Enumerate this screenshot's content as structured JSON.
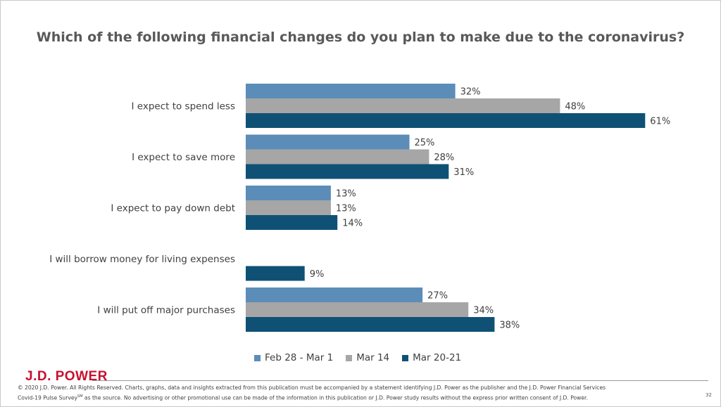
{
  "title": "Which of the following financial changes do you plan to make due to the coronavirus?",
  "chart_data": {
    "type": "bar",
    "orientation": "horizontal",
    "title": "Which of the following financial changes do you plan to make due to the coronavirus?",
    "categories": [
      "I expect to spend less",
      "I expect to save more",
      "I expect to pay down debt",
      "I will borrow money for living expenses",
      "I will put off major purchases"
    ],
    "series": [
      {
        "name": "Feb 28 - Mar 1",
        "color": "#5b8db8",
        "values": [
          32,
          25,
          13,
          null,
          27
        ],
        "labels": [
          "32%",
          "25%",
          "13%",
          "",
          "27%"
        ]
      },
      {
        "name": "Mar 14",
        "color": "#a6a6a6",
        "values": [
          48,
          28,
          13,
          null,
          34
        ],
        "labels": [
          "48%",
          "28%",
          "13%",
          "",
          "34%"
        ]
      },
      {
        "name": "Mar 20-21",
        "color": "#0f5175",
        "values": [
          61,
          31,
          14,
          9,
          38
        ],
        "labels": [
          "61%",
          "31%",
          "14%",
          "9%",
          "38%"
        ]
      }
    ],
    "unit": "%",
    "legend_position": "bottom",
    "grid": false
  },
  "legend": [
    {
      "label": "Feb 28 - Mar 1",
      "color": "#5b8db8"
    },
    {
      "label": "Mar 14",
      "color": "#a6a6a6"
    },
    {
      "label": "Mar 20-21",
      "color": "#0f5175"
    }
  ],
  "brand": {
    "logo_text": "J.D. POWER",
    "color": "#c8102e"
  },
  "footer": {
    "line1": "© 2020 J.D. Power. All Rights Reserved. Charts, graphs, data and insights extracted from this publication must be accompanied by a statement identifying J.D. Power as the publisher and the J.D. Power Financial Services",
    "line2_a": "Covid-19 Pulse Survey",
    "line2_sup": "SM",
    "line2_b": " as the source. No advertising or other promotional use can be made of the information in this publication or J.D. Power study results without the express prior written consent of J.D. Power."
  },
  "page_number": "32"
}
